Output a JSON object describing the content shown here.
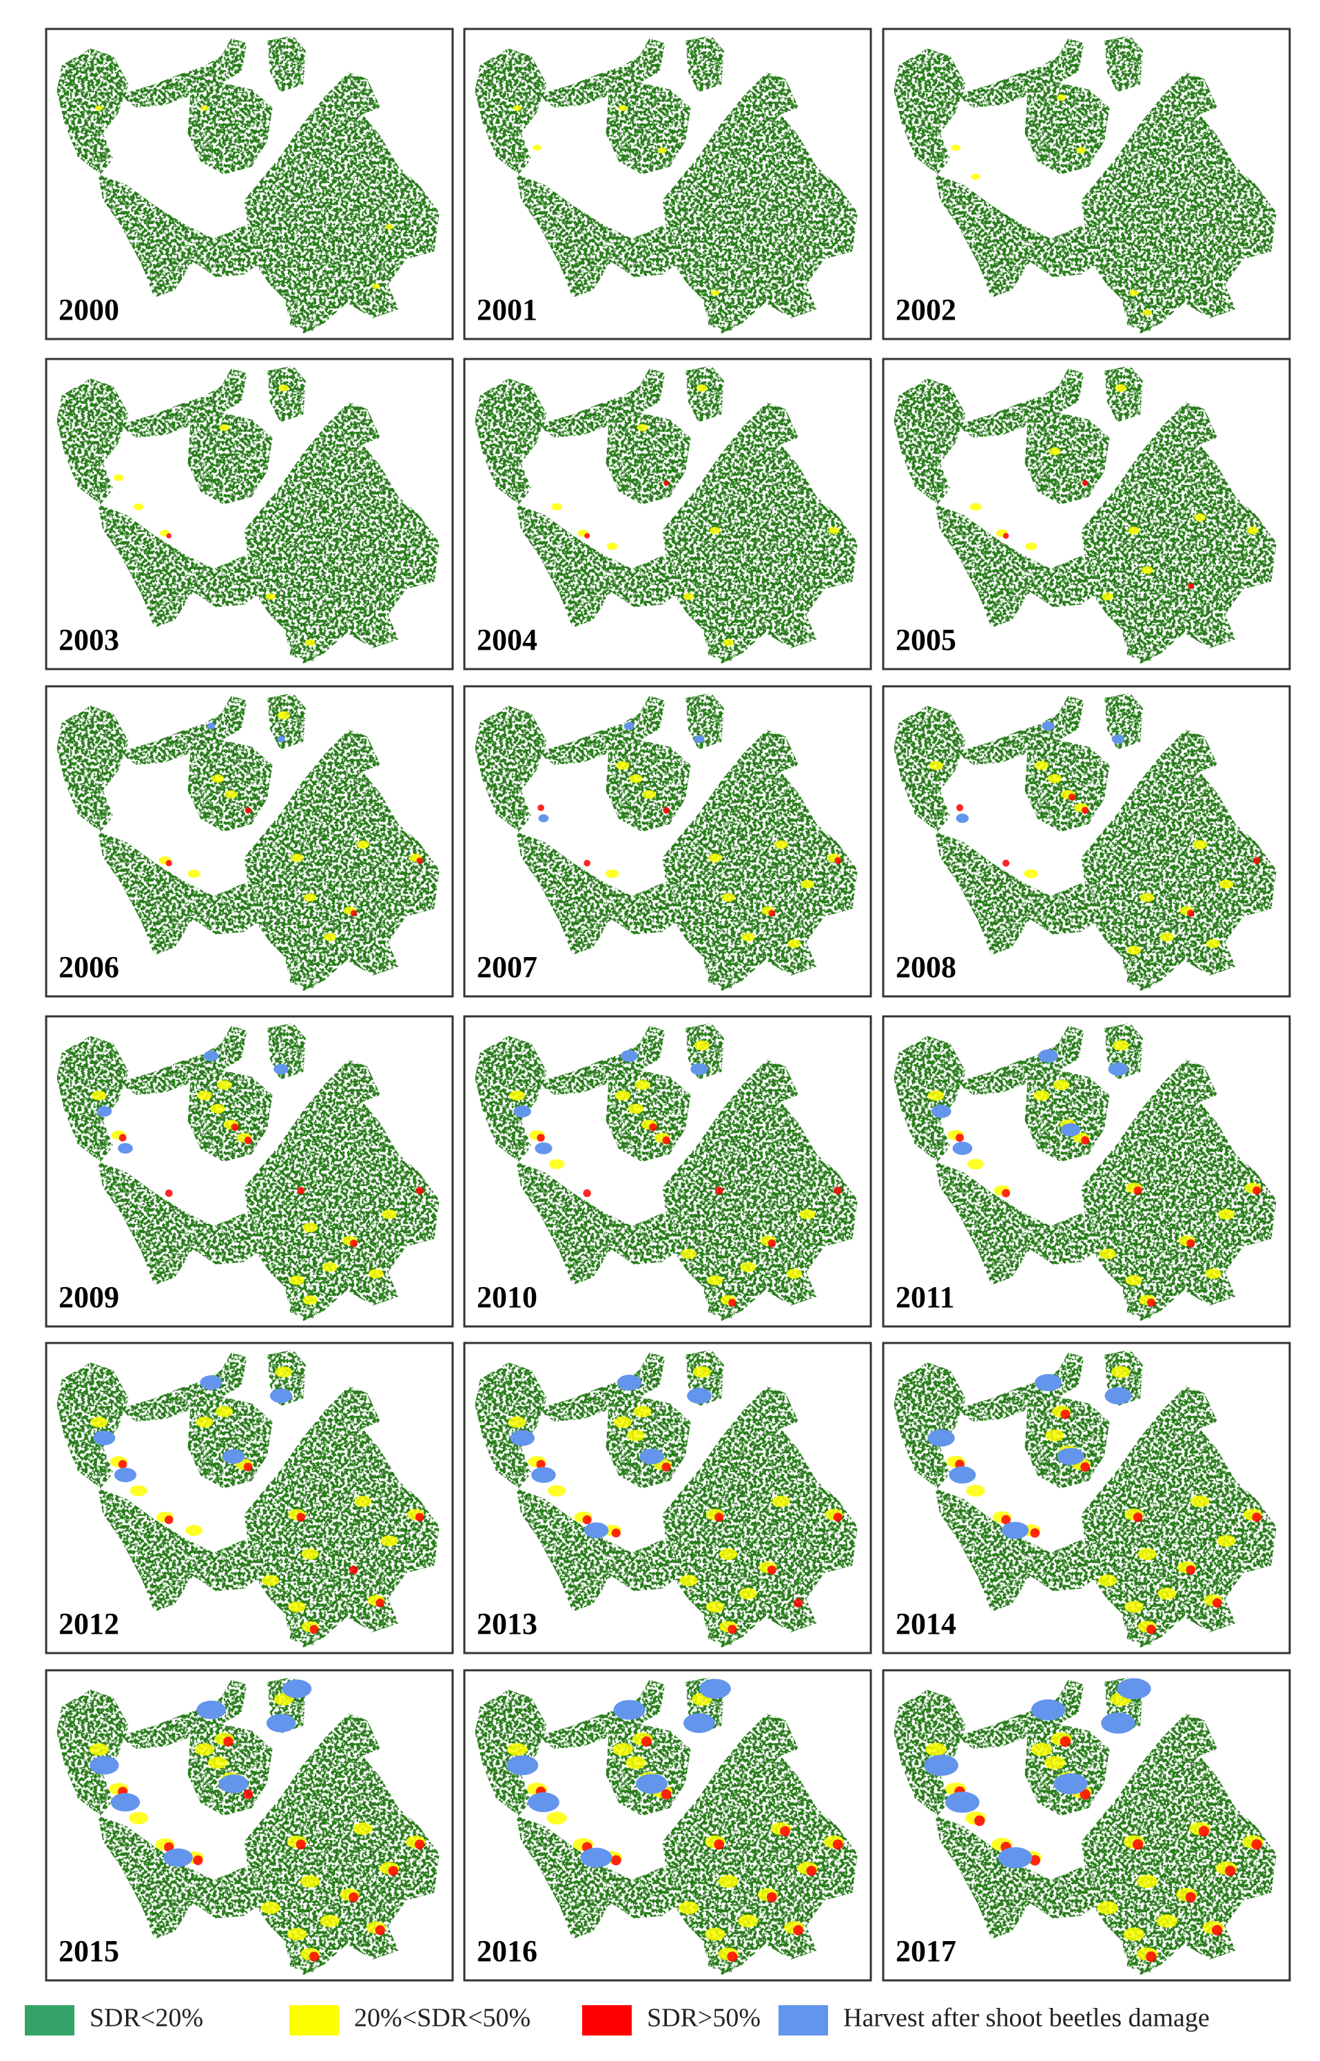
{
  "panels": [
    {
      "year": "2000"
    },
    {
      "year": "2001"
    },
    {
      "year": "2002"
    },
    {
      "year": "2003"
    },
    {
      "year": "2004"
    },
    {
      "year": "2005"
    },
    {
      "year": "2006"
    },
    {
      "year": "2007"
    },
    {
      "year": "2008"
    },
    {
      "year": "2009"
    },
    {
      "year": "2010"
    },
    {
      "year": "2011"
    },
    {
      "year": "2012"
    },
    {
      "year": "2013"
    },
    {
      "year": "2014"
    },
    {
      "year": "2015"
    },
    {
      "year": "2016"
    },
    {
      "year": "2017"
    }
  ],
  "map_color": "#2a7d1e",
  "legend": {
    "items": [
      {
        "label": "SDR<20%",
        "color": "#34a36a"
      },
      {
        "label": "20%<SDR<50%",
        "color": "#ffff00"
      },
      {
        "label": "SDR>50%",
        "color": "#ff0000"
      },
      {
        "label": "Harvest after shoot beetles damage",
        "color": "#6495ed"
      }
    ]
  }
}
